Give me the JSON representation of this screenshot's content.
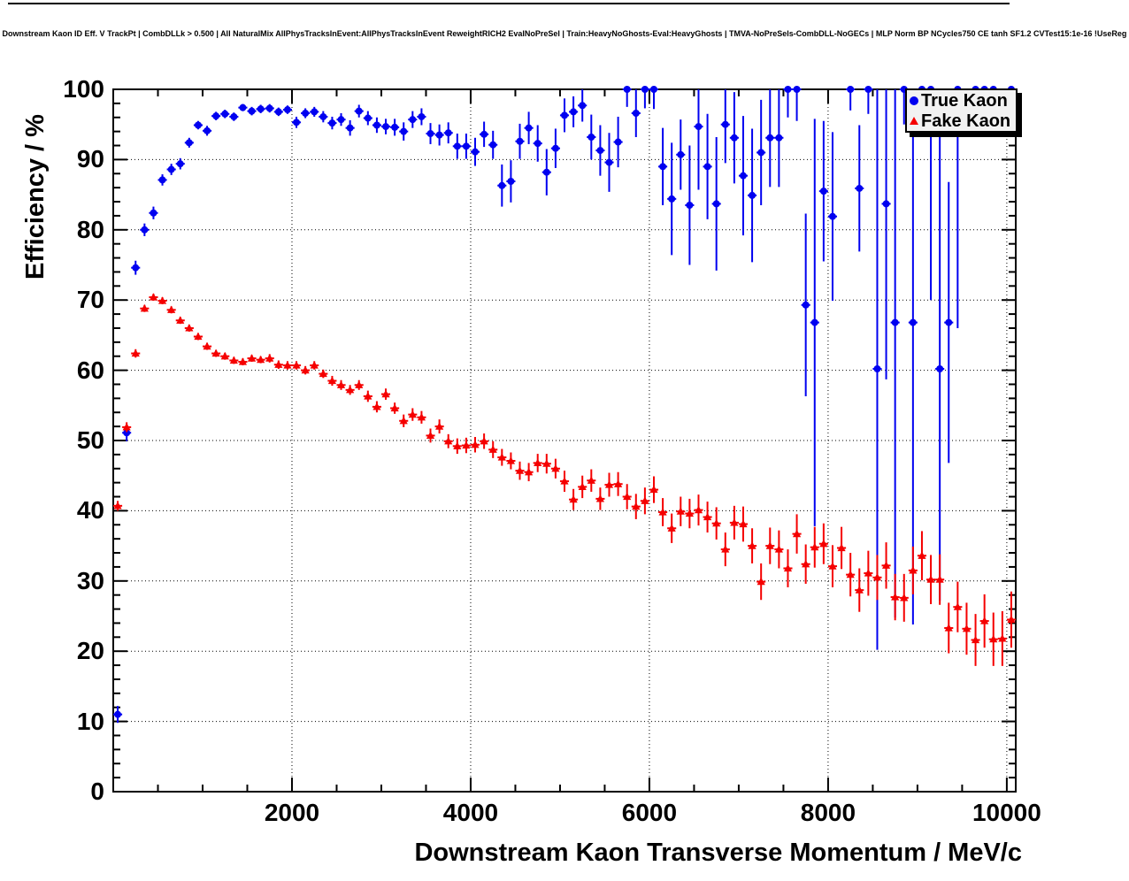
{
  "chart_data": {
    "type": "scatter",
    "title": "Downstream Kaon ID Eff. V TrackPt | CombDLLk > 0.500 | All NaturalMix AllPhysTracksInEvent:AllPhysTracksInEvent ReweightRICH2 EvalNoPreSel | Train:HeavyNoGhosts-Eval:HeavyGhosts | TMVA-NoPreSels-CombDLL-NoGECs | MLP Norm BP NCycles750 CE tanh SF1.2 CVTest15:1e-16 !UseReg",
    "xlabel": "Downstream Kaon Transverse Momentum / MeV/c",
    "ylabel": "Efficiency / %",
    "xlim": [
      0,
      10100
    ],
    "ylim": [
      0,
      100
    ],
    "x_ticks": [
      2000,
      4000,
      6000,
      8000,
      10000
    ],
    "x_tick_labels": [
      "2000",
      "4000",
      "6000",
      "8000",
      "10000"
    ],
    "x_minor_step": 500,
    "y_ticks": [
      0,
      10,
      20,
      30,
      40,
      50,
      60,
      70,
      80,
      90,
      100
    ],
    "y_tick_labels": [
      "0",
      "10",
      "20",
      "30",
      "40",
      "50",
      "60",
      "70",
      "80",
      "90",
      "100"
    ],
    "y_minor_step": 2,
    "grid": "dotted",
    "grid_color": "#000000",
    "x_bin_halfwidth": 50,
    "legend": {
      "position": "top-right",
      "items": [
        {
          "label": "True Kaon",
          "marker": "circle",
          "color": "#0000f0"
        },
        {
          "label": "Fake Kaon",
          "marker": "triangle",
          "color": "#f50000"
        }
      ]
    },
    "series": [
      {
        "name": "True Kaon",
        "marker": "circle",
        "color": "#0000f0",
        "points": [
          [
            50,
            11.0,
            1.2
          ],
          [
            150,
            51.1,
            1.2
          ],
          [
            250,
            74.6,
            1.0
          ],
          [
            350,
            80.0,
            0.9
          ],
          [
            450,
            82.4,
            0.9
          ],
          [
            550,
            87.1,
            0.8
          ],
          [
            650,
            88.6,
            0.8
          ],
          [
            750,
            89.4,
            0.8
          ],
          [
            850,
            92.4,
            0.7
          ],
          [
            950,
            94.9,
            0.6
          ],
          [
            1050,
            94.1,
            0.7
          ],
          [
            1150,
            96.2,
            0.6
          ],
          [
            1250,
            96.5,
            0.6
          ],
          [
            1350,
            96.1,
            0.6
          ],
          [
            1450,
            97.4,
            0.5
          ],
          [
            1550,
            96.9,
            0.6
          ],
          [
            1650,
            97.2,
            0.6
          ],
          [
            1750,
            97.3,
            0.6
          ],
          [
            1850,
            96.8,
            0.6
          ],
          [
            1950,
            97.1,
            0.6
          ],
          [
            2050,
            95.3,
            0.8
          ],
          [
            2150,
            96.6,
            0.7
          ],
          [
            2250,
            96.8,
            0.7
          ],
          [
            2350,
            96.1,
            0.8
          ],
          [
            2450,
            95.2,
            0.9
          ],
          [
            2550,
            95.7,
            0.9
          ],
          [
            2650,
            94.5,
            1.1
          ],
          [
            2750,
            96.9,
            0.9
          ],
          [
            2850,
            95.9,
            1.0
          ],
          [
            2950,
            94.9,
            1.1
          ],
          [
            3050,
            94.7,
            1.1
          ],
          [
            3150,
            94.6,
            1.2
          ],
          [
            3250,
            94.0,
            1.3
          ],
          [
            3350,
            95.7,
            1.2
          ],
          [
            3450,
            96.1,
            1.2
          ],
          [
            3550,
            93.7,
            1.5
          ],
          [
            3650,
            93.5,
            1.5
          ],
          [
            3750,
            93.8,
            1.5
          ],
          [
            3850,
            91.9,
            1.8
          ],
          [
            3950,
            91.9,
            1.8
          ],
          [
            4050,
            91.1,
            2.0
          ],
          [
            4150,
            93.6,
            1.8
          ],
          [
            4250,
            92.1,
            2.0
          ],
          [
            4350,
            86.3,
            3.0
          ],
          [
            4450,
            86.9,
            3.0
          ],
          [
            4550,
            92.6,
            2.5
          ],
          [
            4650,
            94.5,
            2.3
          ],
          [
            4750,
            92.3,
            2.6
          ],
          [
            4850,
            88.2,
            3.3
          ],
          [
            4950,
            91.6,
            2.8
          ],
          [
            5050,
            96.3,
            2.4
          ],
          [
            5150,
            96.8,
            2.2
          ],
          [
            5250,
            97.7,
            2.3
          ],
          [
            5350,
            93.2,
            3.2
          ],
          [
            5450,
            91.3,
            3.6
          ],
          [
            5550,
            89.6,
            4.2
          ],
          [
            5650,
            92.5,
            3.6
          ],
          [
            5750,
            100,
            2.5
          ],
          [
            5850,
            96.6,
            3.4
          ],
          [
            5950,
            100,
            2.7
          ],
          [
            6050,
            100,
            2.8
          ],
          [
            6150,
            89.0,
            5.5
          ],
          [
            6250,
            84.4,
            8.0
          ],
          [
            6350,
            90.7,
            5.0
          ],
          [
            6450,
            83.5,
            8.5
          ],
          [
            6550,
            94.7,
            9.0
          ],
          [
            6650,
            89.0,
            7.5
          ],
          [
            6750,
            83.7,
            9.5
          ],
          [
            6850,
            95.0,
            5.5
          ],
          [
            6950,
            93.1,
            6.5
          ],
          [
            7050,
            87.7,
            8.5
          ],
          [
            7150,
            84.9,
            9.5
          ],
          [
            7250,
            91.0,
            7.5
          ],
          [
            7350,
            93.1,
            7.0
          ],
          [
            7450,
            93.1,
            7.0
          ],
          [
            7550,
            100,
            4.0
          ],
          [
            7650,
            100,
            4.5
          ],
          [
            7750,
            69.3,
            13.0
          ],
          [
            7850,
            66.8,
            29.0
          ],
          [
            7950,
            85.5,
            10.0
          ],
          [
            8050,
            81.9,
            12.0
          ],
          [
            8250,
            100,
            3.0
          ],
          [
            8350,
            85.9,
            9.0
          ],
          [
            8450,
            100,
            3.5
          ],
          [
            8550,
            60.2,
            40.0
          ],
          [
            8650,
            83.7,
            25.0
          ],
          [
            8750,
            66.8,
            42.0
          ],
          [
            8850,
            100,
            5.0
          ],
          [
            8950,
            66.8,
            43.0
          ],
          [
            9050,
            100,
            6.0
          ],
          [
            9150,
            100,
            30.0
          ],
          [
            9250,
            60.2,
            33.0
          ],
          [
            9350,
            66.8,
            20.0
          ],
          [
            9450,
            100,
            34.0
          ],
          [
            9650,
            100,
            2.0
          ],
          [
            9750,
            100,
            2.0
          ],
          [
            9850,
            100,
            2.0
          ],
          [
            10050,
            100,
            2.0
          ]
        ]
      },
      {
        "name": "Fake Kaon",
        "marker": "triangle",
        "color": "#f50000",
        "points": [
          [
            50,
            40.7,
            0.7
          ],
          [
            150,
            51.9,
            0.7
          ],
          [
            250,
            62.4,
            0.6
          ],
          [
            350,
            68.8,
            0.5
          ],
          [
            450,
            70.4,
            0.5
          ],
          [
            550,
            69.9,
            0.5
          ],
          [
            650,
            68.6,
            0.5
          ],
          [
            750,
            67.1,
            0.5
          ],
          [
            850,
            66.0,
            0.5
          ],
          [
            950,
            64.8,
            0.5
          ],
          [
            1050,
            63.4,
            0.5
          ],
          [
            1150,
            62.4,
            0.5
          ],
          [
            1250,
            62.0,
            0.5
          ],
          [
            1350,
            61.4,
            0.5
          ],
          [
            1450,
            61.2,
            0.5
          ],
          [
            1550,
            61.7,
            0.5
          ],
          [
            1650,
            61.5,
            0.5
          ],
          [
            1750,
            61.7,
            0.6
          ],
          [
            1850,
            60.8,
            0.6
          ],
          [
            1950,
            60.7,
            0.6
          ],
          [
            2050,
            60.7,
            0.6
          ],
          [
            2150,
            60.0,
            0.6
          ],
          [
            2250,
            60.7,
            0.6
          ],
          [
            2350,
            59.5,
            0.6
          ],
          [
            2450,
            58.5,
            0.7
          ],
          [
            2550,
            57.9,
            0.7
          ],
          [
            2650,
            57.2,
            0.7
          ],
          [
            2750,
            57.9,
            0.7
          ],
          [
            2850,
            56.3,
            0.8
          ],
          [
            2950,
            54.8,
            0.8
          ],
          [
            3050,
            56.6,
            0.8
          ],
          [
            3150,
            54.6,
            0.8
          ],
          [
            3250,
            52.8,
            0.9
          ],
          [
            3350,
            53.7,
            0.9
          ],
          [
            3450,
            53.3,
            0.9
          ],
          [
            3550,
            50.7,
            1.0
          ],
          [
            3650,
            52.0,
            1.0
          ],
          [
            3750,
            49.9,
            1.0
          ],
          [
            3850,
            49.2,
            1.1
          ],
          [
            3950,
            49.3,
            1.1
          ],
          [
            4050,
            49.4,
            1.1
          ],
          [
            4150,
            49.9,
            1.1
          ],
          [
            4250,
            48.7,
            1.2
          ],
          [
            4350,
            47.6,
            1.2
          ],
          [
            4450,
            47.1,
            1.2
          ],
          [
            4550,
            45.7,
            1.3
          ],
          [
            4650,
            45.5,
            1.3
          ],
          [
            4750,
            46.8,
            1.3
          ],
          [
            4850,
            46.7,
            1.4
          ],
          [
            4950,
            46.0,
            1.4
          ],
          [
            5050,
            44.2,
            1.5
          ],
          [
            5150,
            41.6,
            1.5
          ],
          [
            5250,
            43.4,
            1.6
          ],
          [
            5350,
            44.3,
            1.6
          ],
          [
            5450,
            41.7,
            1.6
          ],
          [
            5550,
            43.7,
            1.7
          ],
          [
            5650,
            43.8,
            1.7
          ],
          [
            5750,
            42.0,
            1.8
          ],
          [
            5850,
            40.6,
            1.8
          ],
          [
            5950,
            41.4,
            1.9
          ],
          [
            6050,
            43.0,
            1.9
          ],
          [
            6150,
            39.8,
            2.0
          ],
          [
            6250,
            37.5,
            2.1
          ],
          [
            6350,
            39.9,
            2.1
          ],
          [
            6450,
            39.6,
            2.1
          ],
          [
            6550,
            40.1,
            2.2
          ],
          [
            6650,
            39.1,
            2.2
          ],
          [
            6750,
            38.2,
            2.3
          ],
          [
            6850,
            34.5,
            2.4
          ],
          [
            6950,
            38.3,
            2.4
          ],
          [
            7050,
            38.1,
            2.5
          ],
          [
            7150,
            35.0,
            2.5
          ],
          [
            7250,
            29.9,
            2.6
          ],
          [
            7350,
            35.0,
            2.6
          ],
          [
            7450,
            34.5,
            2.7
          ],
          [
            7550,
            31.8,
            2.7
          ],
          [
            7650,
            36.7,
            2.8
          ],
          [
            7750,
            32.4,
            2.8
          ],
          [
            7850,
            34.8,
            2.9
          ],
          [
            7950,
            35.3,
            2.9
          ],
          [
            8050,
            32.1,
            3.0
          ],
          [
            8150,
            34.7,
            3.0
          ],
          [
            8250,
            30.9,
            3.1
          ],
          [
            8350,
            28.7,
            3.1
          ],
          [
            8450,
            31.1,
            3.2
          ],
          [
            8550,
            30.5,
            3.2
          ],
          [
            8650,
            32.2,
            3.3
          ],
          [
            8750,
            27.7,
            3.3
          ],
          [
            8850,
            27.6,
            3.4
          ],
          [
            8950,
            31.5,
            3.4
          ],
          [
            9050,
            33.6,
            3.5
          ],
          [
            9150,
            30.2,
            3.5
          ],
          [
            9250,
            30.2,
            3.6
          ],
          [
            9350,
            23.3,
            3.6
          ],
          [
            9450,
            26.3,
            3.6
          ],
          [
            9550,
            23.2,
            3.7
          ],
          [
            9650,
            21.6,
            3.7
          ],
          [
            9750,
            24.3,
            3.8
          ],
          [
            9850,
            21.7,
            3.8
          ],
          [
            9950,
            21.8,
            3.9
          ],
          [
            10050,
            24.5,
            4.0
          ]
        ]
      }
    ]
  }
}
